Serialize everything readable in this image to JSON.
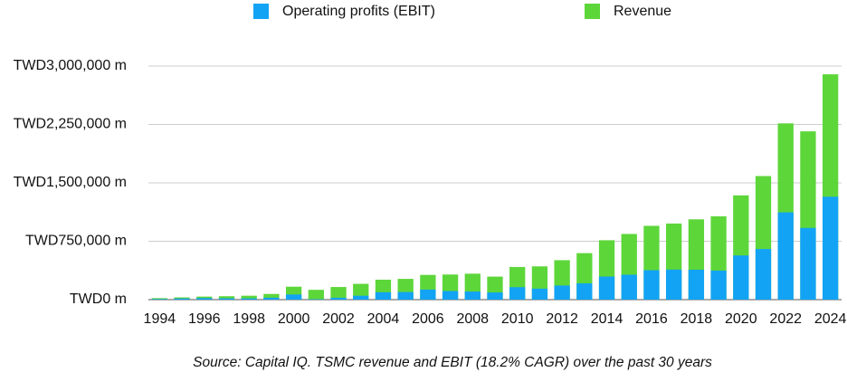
{
  "chart_data": {
    "type": "bar",
    "caption": "Source: Capital IQ. TSMC revenue and EBIT (18.2% CAGR) over the past 30 years",
    "categories": [
      "1994",
      null,
      "1996",
      null,
      "1998",
      null,
      "2000",
      null,
      "2002",
      null,
      "2004",
      null,
      "2006",
      null,
      "2008",
      null,
      "2010",
      null,
      "2012",
      null,
      "2014",
      null,
      "2016",
      null,
      "2018",
      null,
      "2020",
      null,
      "2022",
      null,
      "2024"
    ],
    "series": [
      {
        "name": "Revenue",
        "color": "#5dd63a",
        "values": [
          19000,
          28800,
          39000,
          43900,
          50200,
          73100,
          166200,
          125900,
          162300,
          203000,
          256000,
          266600,
          317400,
          322600,
          333200,
          295700,
          419500,
          427100,
          506700,
          597000,
          762800,
          843500,
          947900,
          977400,
          1031500,
          1070000,
          1339300,
          1587400,
          2263900,
          2161700,
          2894300
        ]
      },
      {
        "name": "Operating profits (EBIT)",
        "color": "#12a3f5",
        "values": [
          8000,
          15000,
          20000,
          17000,
          16000,
          25000,
          66000,
          6000,
          24000,
          50000,
          95000,
          97000,
          129000,
          111000,
          104000,
          92000,
          160000,
          141000,
          181000,
          209000,
          296000,
          320000,
          378000,
          386000,
          384000,
          373000,
          567000,
          650000,
          1121000,
          921000,
          1322000
        ]
      }
    ],
    "legend_order": [
      1,
      0
    ],
    "ylim": [
      0,
      3000000
    ],
    "yticks": [
      {
        "value": 0,
        "label": "TWD0 m"
      },
      {
        "value": 750000,
        "label": "TWD750,000 m"
      },
      {
        "value": 1500000,
        "label": "TWD1,500,000 m"
      },
      {
        "value": 2250000,
        "label": "TWD2,250,000 m"
      },
      {
        "value": 3000000,
        "label": "TWD3,000,000 m"
      }
    ],
    "grid": true
  }
}
